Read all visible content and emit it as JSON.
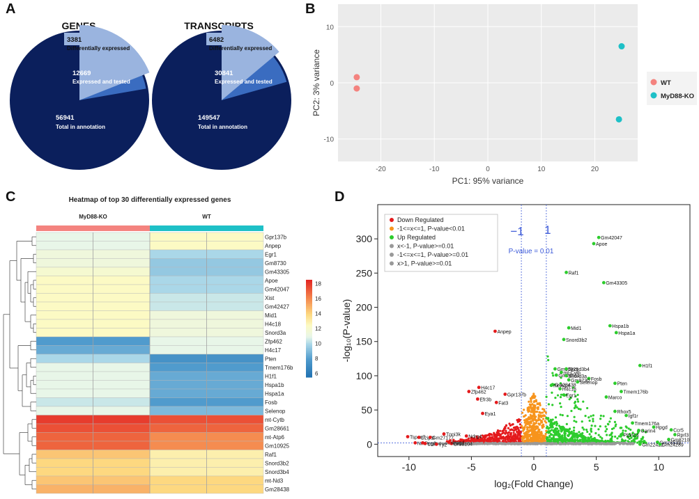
{
  "panels": {
    "a": "A",
    "b": "B",
    "c": "C",
    "d": "D"
  },
  "colors": {
    "navy": "#0b1f5c",
    "mid_blue": "#3a6cc0",
    "light_blue": "#9ab4df",
    "wt": "#f4837f",
    "ko": "#1ec0c7",
    "down": "#e41a1c",
    "nonsig_mid": "#f7941d",
    "up": "#2dcc2d",
    "grey": "#999999",
    "guide": "#3a58d8"
  },
  "chart_data": [
    {
      "id": "genes_pie",
      "type": "pie",
      "title": "GENES",
      "slices": [
        {
          "value": 3381,
          "label": "Differentially expressed"
        },
        {
          "value": 12669,
          "label": "Expressed and tested"
        },
        {
          "value": 56941,
          "label": "Total in annotation"
        }
      ]
    },
    {
      "id": "transcripts_pie",
      "type": "pie",
      "title": "TRANSCRIPTS",
      "slices": [
        {
          "value": 6482,
          "label": "Differentially expressed"
        },
        {
          "value": 30841,
          "label": "Expressed and tested"
        },
        {
          "value": 149547,
          "label": "Total in annotation"
        }
      ]
    },
    {
      "id": "pca",
      "type": "scatter",
      "xlabel": "PC1: 95% variance",
      "ylabel": "PC2: 3% variance",
      "xlim": [
        -28,
        28
      ],
      "ylim": [
        -14,
        14
      ],
      "xticks": [
        -20,
        -10,
        0,
        10,
        20
      ],
      "yticks": [
        -10,
        0,
        10
      ],
      "series": [
        {
          "name": "WT",
          "points": [
            [
              -24.5,
              1.0
            ],
            [
              -24.5,
              -1.0
            ]
          ]
        },
        {
          "name": "MyD88-KO",
          "points": [
            [
              25.0,
              6.5
            ],
            [
              24.5,
              -6.5
            ]
          ]
        }
      ]
    },
    {
      "id": "heatmap",
      "type": "heatmap",
      "title": "Heatmap of top 30 differentially expressed genes",
      "groups": [
        "MyD88-KO",
        "WT"
      ],
      "colorbar_ticks": [
        6,
        8,
        10,
        12,
        14,
        16,
        18
      ],
      "vmin": 5.5,
      "vmax": 18.5,
      "rows": [
        {
          "gene": "Gpr137b",
          "values": [
            11,
            11,
            12.5,
            12.5
          ]
        },
        {
          "gene": "Anpep",
          "values": [
            11,
            11,
            12.5,
            12.5
          ]
        },
        {
          "gene": "Egr1",
          "values": [
            11.5,
            11.5,
            10,
            10
          ]
        },
        {
          "gene": "Gm8730",
          "values": [
            11.5,
            11.5,
            9.5,
            9.5
          ]
        },
        {
          "gene": "Gm43305",
          "values": [
            12,
            12,
            9.5,
            9.5
          ]
        },
        {
          "gene": "Apoe",
          "values": [
            12.5,
            12.5,
            10,
            10
          ]
        },
        {
          "gene": "Gm42047",
          "values": [
            12.5,
            12.5,
            10,
            10
          ]
        },
        {
          "gene": "Xist",
          "values": [
            12.5,
            12.5,
            10.5,
            10.5
          ]
        },
        {
          "gene": "Gm42427",
          "values": [
            12.5,
            12.5,
            10.5,
            10.5
          ]
        },
        {
          "gene": "Mid1",
          "values": [
            12.5,
            12.5,
            11.5,
            11.5
          ]
        },
        {
          "gene": "H4c18",
          "values": [
            12.5,
            12.5,
            11.5,
            11.5
          ]
        },
        {
          "gene": "Snord3a",
          "values": [
            12.5,
            12.5,
            11.5,
            11.5
          ]
        },
        {
          "gene": "Zfp462",
          "values": [
            8,
            8,
            11,
            11
          ]
        },
        {
          "gene": "H4c17",
          "values": [
            8.5,
            8.5,
            11,
            11
          ]
        },
        {
          "gene": "Pten",
          "values": [
            10,
            10,
            7.5,
            7.5
          ]
        },
        {
          "gene": "Tmem176b",
          "values": [
            11,
            11,
            8,
            8
          ]
        },
        {
          "gene": "H1f1",
          "values": [
            11,
            11,
            8.5,
            8.5
          ]
        },
        {
          "gene": "Hspa1b",
          "values": [
            11,
            11,
            8.5,
            8.5
          ]
        },
        {
          "gene": "Hspa1a",
          "values": [
            11,
            11,
            8.5,
            8.5
          ]
        },
        {
          "gene": "Fosb",
          "values": [
            10.5,
            10.5,
            8,
            8
          ]
        },
        {
          "gene": "Selenop",
          "values": [
            11,
            11,
            9,
            9
          ]
        },
        {
          "gene": "mt-Cytb",
          "values": [
            18,
            18,
            17.5,
            17.5
          ]
        },
        {
          "gene": "Gm28661",
          "values": [
            17.5,
            17.5,
            17,
            17
          ]
        },
        {
          "gene": "mt-Atp6",
          "values": [
            17,
            17,
            16,
            16
          ]
        },
        {
          "gene": "Gm10925",
          "values": [
            17,
            17,
            16,
            16
          ]
        },
        {
          "gene": "Raf1",
          "values": [
            14.5,
            14.5,
            13,
            13
          ]
        },
        {
          "gene": "Snord3b2",
          "values": [
            14,
            14,
            13,
            13
          ]
        },
        {
          "gene": "Snord3b4",
          "values": [
            14,
            14,
            13,
            13
          ]
        },
        {
          "gene": "mt-Nd3",
          "values": [
            14.5,
            14.5,
            14,
            14
          ]
        },
        {
          "gene": "Gm28438",
          "values": [
            15,
            15,
            14,
            14
          ]
        }
      ]
    },
    {
      "id": "volcano",
      "type": "scatter",
      "xlabel": "log₂(Fold Change)",
      "ylabel": "-log₁₀(P-value)",
      "xlim": [
        -12.5,
        12.5
      ],
      "ylim": [
        -18,
        350
      ],
      "xticks": [
        -10,
        -5,
        0,
        5,
        10
      ],
      "yticks": [
        0,
        50,
        100,
        150,
        200,
        250,
        300
      ],
      "threshold_labels": [
        "−1",
        "1"
      ],
      "pvalue_label": "P-value = 0.01",
      "pvalue_line": 2,
      "fc_lines": [
        -1,
        1
      ],
      "legend": [
        {
          "label": "Down Regulated",
          "color": "#e41a1c"
        },
        {
          "label": "-1<=x<=1, P-value<0.01",
          "color": "#f7941d"
        },
        {
          "label": "Up Regulated",
          "color": "#2dcc2d"
        },
        {
          "label": "x<-1, P-value>=0.01",
          "color": "#999999"
        },
        {
          "label": "-1<=x<=1, P-value>=0.01",
          "color": "#999999"
        },
        {
          "label": "x>1, P-value>=0.01",
          "color": "#999999"
        }
      ],
      "labeled_points": [
        {
          "gene": "Gm42047",
          "x": 5.2,
          "y": 302,
          "dir": "up"
        },
        {
          "gene": "Apoe",
          "x": 4.8,
          "y": 293,
          "dir": "up"
        },
        {
          "gene": "Raf1",
          "x": 2.6,
          "y": 251,
          "dir": "up"
        },
        {
          "gene": "Gm43305",
          "x": 5.6,
          "y": 236,
          "dir": "up"
        },
        {
          "gene": "Mid1",
          "x": 2.8,
          "y": 170,
          "dir": "up"
        },
        {
          "gene": "Hspa1b",
          "x": 6.1,
          "y": 173,
          "dir": "up"
        },
        {
          "gene": "Hspa1a",
          "x": 6.6,
          "y": 163,
          "dir": "up"
        },
        {
          "gene": "Snord3b2",
          "x": 2.4,
          "y": 153,
          "dir": "up"
        },
        {
          "gene": "H1f1",
          "x": 8.5,
          "y": 115,
          "dir": "up"
        },
        {
          "gene": "Gm10925",
          "x": 1.7,
          "y": 110,
          "dir": "up"
        },
        {
          "gene": "Snord3b4",
          "x": 2.6,
          "y": 110,
          "dir": "up"
        },
        {
          "gene": "mt-Cytb",
          "x": 2.2,
          "y": 105,
          "dir": "up"
        },
        {
          "gene": "Gm28661",
          "x": 1.8,
          "y": 101,
          "dir": "up"
        },
        {
          "gene": "Snord3a",
          "x": 2.6,
          "y": 100,
          "dir": "up"
        },
        {
          "gene": "Fosb",
          "x": 4.4,
          "y": 96,
          "dir": "up"
        },
        {
          "gene": "Gm8730",
          "x": 2.8,
          "y": 94,
          "dir": "up"
        },
        {
          "gene": "Selenop",
          "x": 3.5,
          "y": 91,
          "dir": "up"
        },
        {
          "gene": "Gm28438",
          "x": 1.5,
          "y": 87,
          "dir": "up"
        },
        {
          "gene": "mt-Atp6",
          "x": 1.4,
          "y": 86,
          "dir": "up"
        },
        {
          "gene": "Pten",
          "x": 6.5,
          "y": 89,
          "dir": "up"
        },
        {
          "gene": "H4c18",
          "x": 2.1,
          "y": 81,
          "dir": "up"
        },
        {
          "gene": "Tmem176b",
          "x": 7.0,
          "y": 77,
          "dir": "up"
        },
        {
          "gene": "Egr1",
          "x": 2.4,
          "y": 72,
          "dir": "up"
        },
        {
          "gene": "Marco",
          "x": 5.8,
          "y": 69,
          "dir": "up"
        },
        {
          "gene": "Rhox5",
          "x": 6.5,
          "y": 48,
          "dir": "up"
        },
        {
          "gene": "Igf1r",
          "x": 7.4,
          "y": 42,
          "dir": "up"
        },
        {
          "gene": "Tmem176a",
          "x": 7.9,
          "y": 31,
          "dir": "up"
        },
        {
          "gene": "Hpgd",
          "x": 9.6,
          "y": 25,
          "dir": "up"
        },
        {
          "gene": "Ccr5",
          "x": 11.0,
          "y": 21,
          "dir": "up"
        },
        {
          "gene": "Garin4",
          "x": 8.4,
          "y": 20,
          "dir": "up"
        },
        {
          "gene": "Rprl3",
          "x": 11.3,
          "y": 14,
          "dir": "up"
        },
        {
          "gene": "Ptpn14",
          "x": 7.0,
          "y": 14,
          "dir": "up"
        },
        {
          "gene": "Gm8210",
          "x": 10.8,
          "y": 7,
          "dir": "up"
        },
        {
          "gene": "Gm26539",
          "x": 9.9,
          "y": 3,
          "dir": "up"
        },
        {
          "gene": "Gm22422",
          "x": 8.5,
          "y": 0,
          "dir": "up"
        },
        {
          "gene": "Gm24289",
          "x": 10.1,
          "y": 0,
          "dir": "up"
        },
        {
          "gene": "Anpep",
          "x": -3.1,
          "y": 165,
          "dir": "down"
        },
        {
          "gene": "H4c17",
          "x": -4.4,
          "y": 83,
          "dir": "down"
        },
        {
          "gene": "Zfp462",
          "x": -5.2,
          "y": 77,
          "dir": "down"
        },
        {
          "gene": "Gpr137b",
          "x": -2.3,
          "y": 73,
          "dir": "down"
        },
        {
          "gene": "Efr3b",
          "x": -4.5,
          "y": 66,
          "dir": "down"
        },
        {
          "gene": "Fat3",
          "x": -3.0,
          "y": 61,
          "dir": "down"
        },
        {
          "gene": "Eya1",
          "x": -4.1,
          "y": 45,
          "dir": "down"
        },
        {
          "gene": "Tnni3k",
          "x": -7.2,
          "y": 15,
          "dir": "down"
        },
        {
          "gene": "Ndrg4",
          "x": -5.4,
          "y": 12,
          "dir": "down"
        },
        {
          "gene": "Tspan7",
          "x": -10.1,
          "y": 11,
          "dir": "down"
        },
        {
          "gene": "Dzip1l",
          "x": -9.2,
          "y": 10,
          "dir": "down"
        },
        {
          "gene": "Gm27177",
          "x": -8.3,
          "y": 10,
          "dir": "down"
        },
        {
          "gene": "Or5b104",
          "x": -6.6,
          "y": 1,
          "dir": "down"
        },
        {
          "gene": "Nnt",
          "x": -9.5,
          "y": 2,
          "dir": "down"
        },
        {
          "gene": "Peg3",
          "x": -8.9,
          "y": 2,
          "dir": "down"
        },
        {
          "gene": "Rragd",
          "x": -6.8,
          "y": 3,
          "dir": "down"
        },
        {
          "gene": "Cttn",
          "x": -8.7,
          "y": 1,
          "dir": "down"
        },
        {
          "gene": "Yy2",
          "x": -7.8,
          "y": 0,
          "dir": "down"
        }
      ]
    }
  ]
}
